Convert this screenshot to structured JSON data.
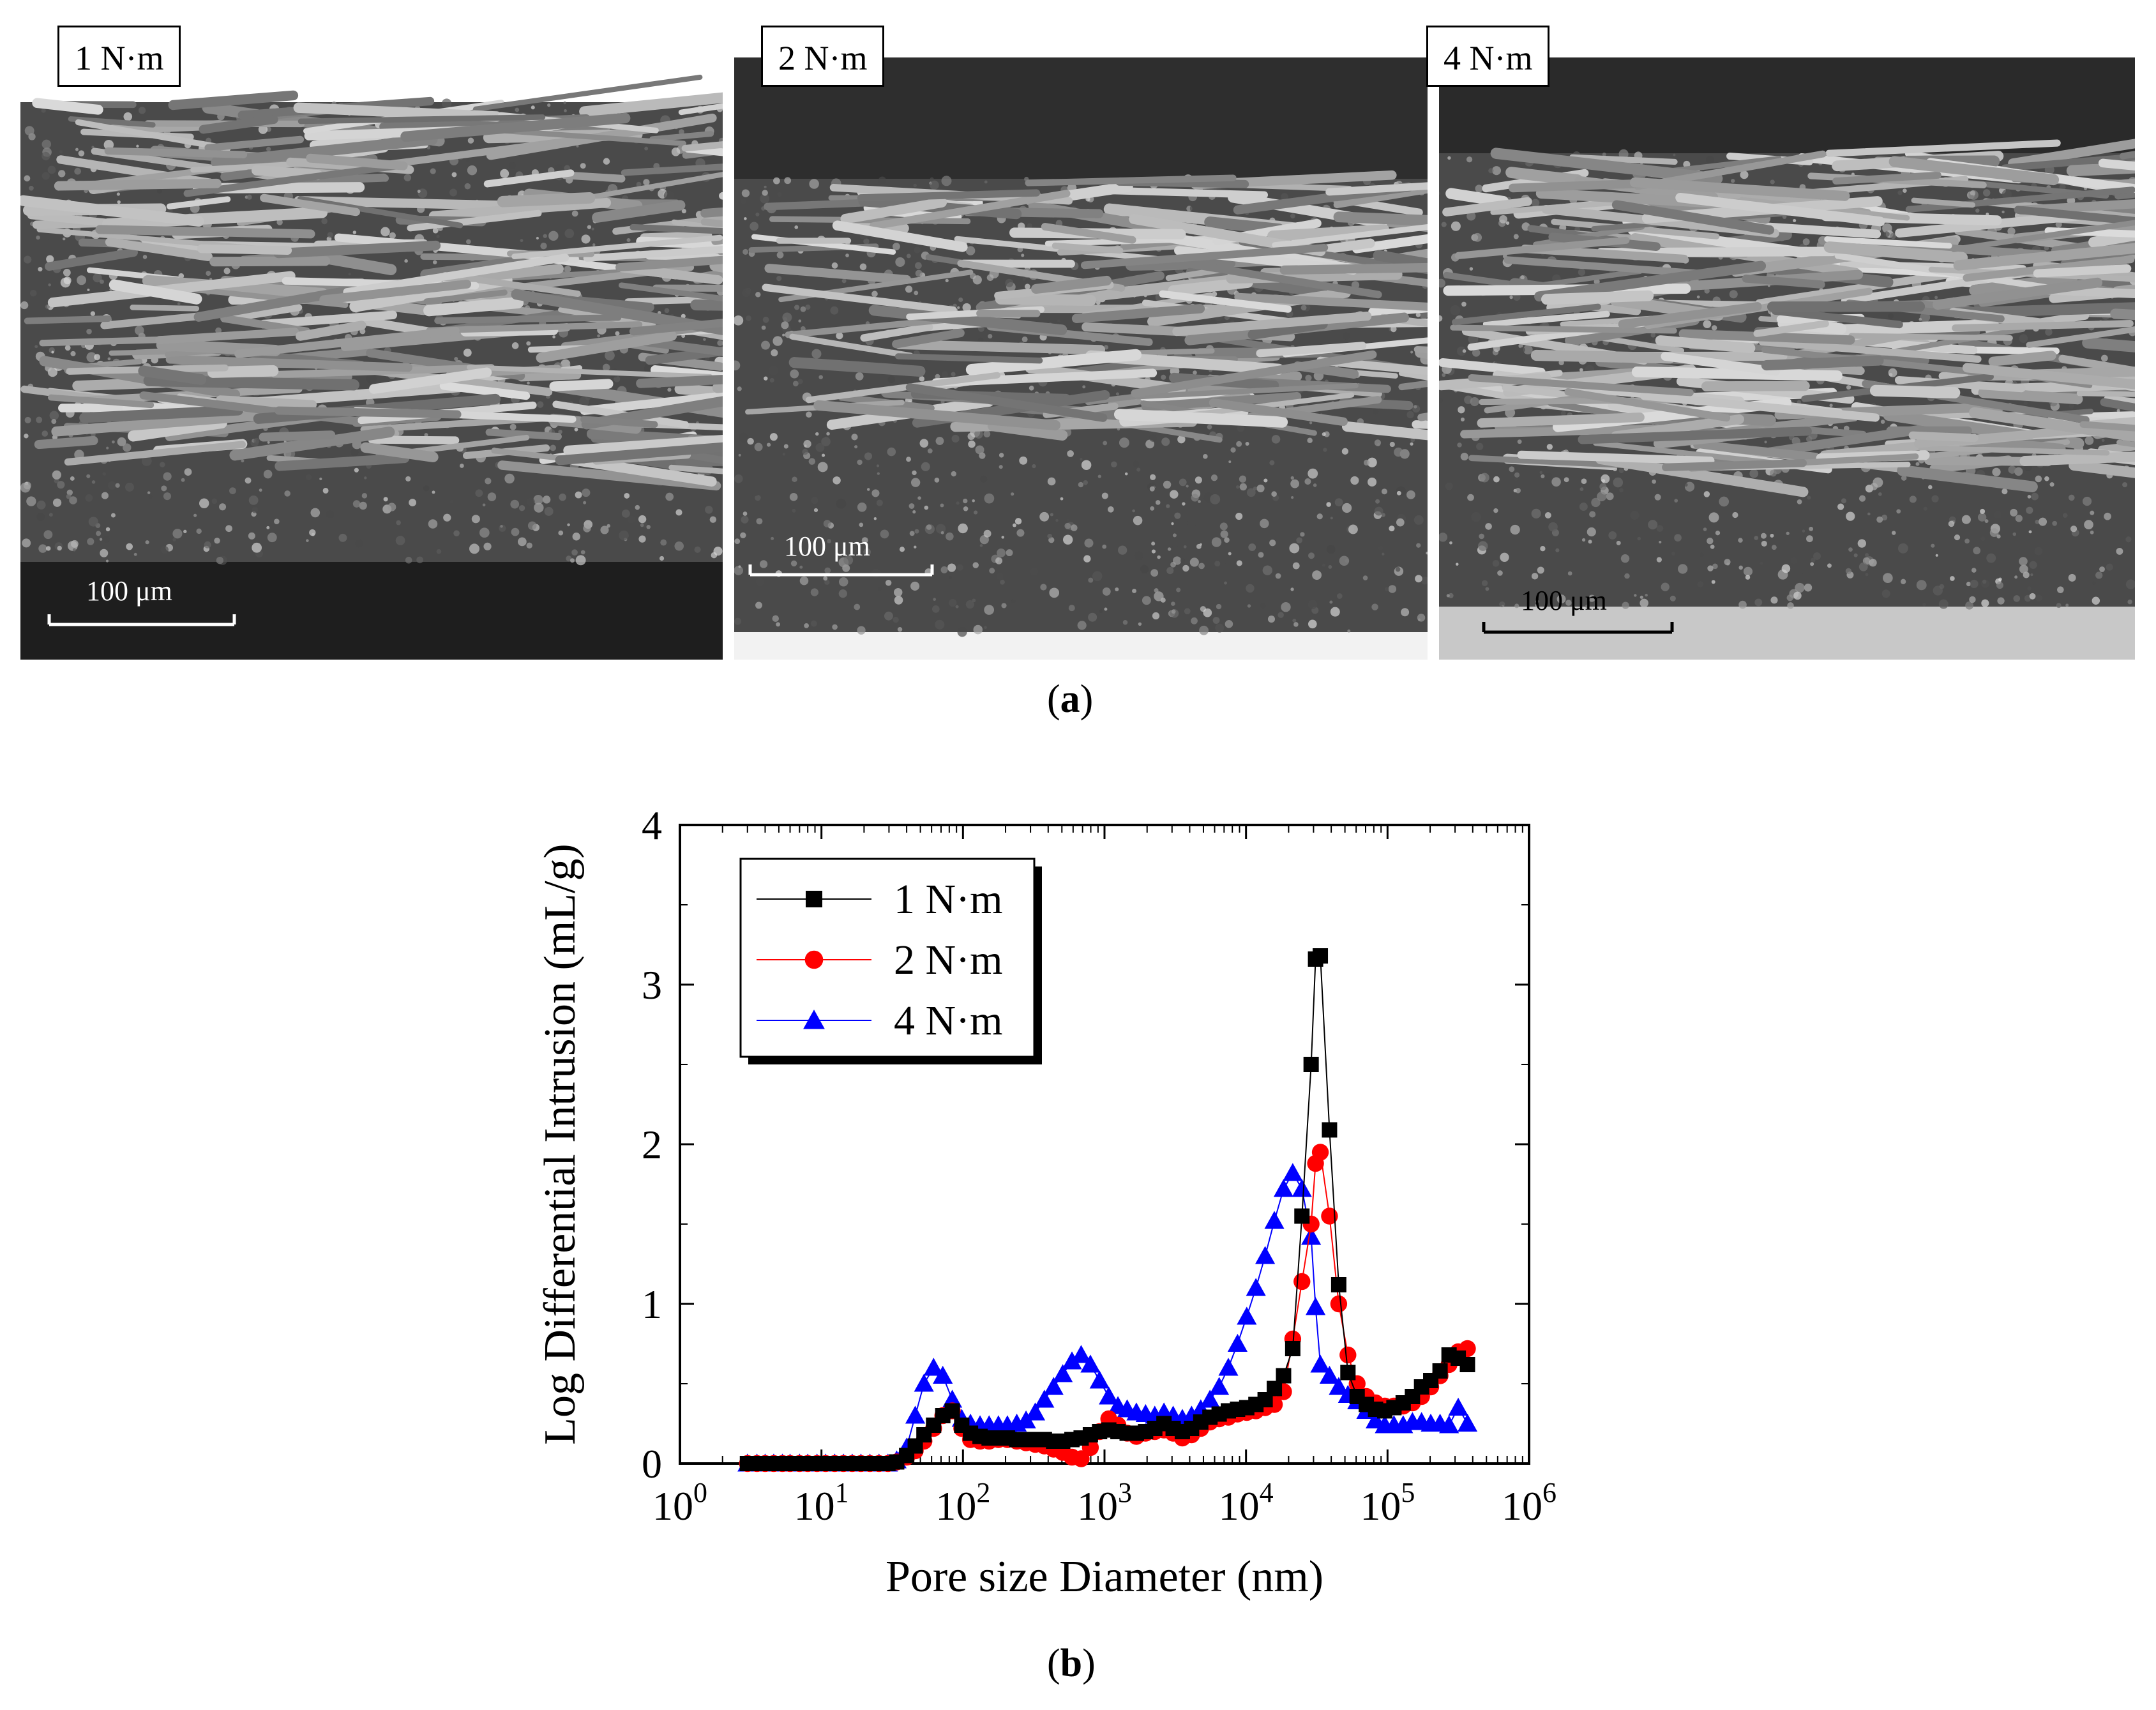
{
  "panel_a": {
    "caption_open": "(",
    "caption_letter": "a",
    "caption_close": ")",
    "images": [
      {
        "label": "1 N·m",
        "scale_bar": "100 μm"
      },
      {
        "label": "2 N·m",
        "scale_bar": "100 μm"
      },
      {
        "label": "4 N·m",
        "scale_bar": "100 μm"
      }
    ]
  },
  "panel_b": {
    "caption_open": "(",
    "caption_letter": "b",
    "caption_close": ")"
  },
  "chart_data": {
    "type": "scatter",
    "title": "",
    "xlabel": "Pore size Diameter (nm)",
    "ylabel": "Log Differential Intrusion (mL/g)",
    "x_scale": "log",
    "xlim": [
      1,
      1000000
    ],
    "ylim": [
      0,
      4
    ],
    "x_ticks": [
      {
        "base": "10",
        "exp": "0"
      },
      {
        "base": "10",
        "exp": "1"
      },
      {
        "base": "10",
        "exp": "2"
      },
      {
        "base": "10",
        "exp": "3"
      },
      {
        "base": "10",
        "exp": "4"
      },
      {
        "base": "10",
        "exp": "5"
      },
      {
        "base": "10",
        "exp": "6"
      }
    ],
    "y_ticks": [
      "0",
      "1",
      "2",
      "3",
      "4"
    ],
    "legend_position": "top-left",
    "grid": false,
    "series": [
      {
        "name": "1 N·m",
        "color": "#000000",
        "marker": "square",
        "x": [
          3,
          3.5,
          4,
          4.6,
          5.3,
          6,
          7,
          8,
          9.3,
          10.7,
          12.4,
          14.3,
          16.5,
          19,
          22,
          25.5,
          29.5,
          34,
          40,
          46,
          53,
          62,
          72,
          84,
          98,
          113,
          132,
          153,
          178,
          206,
          240,
          279,
          324,
          376,
          437,
          507,
          589,
          684,
          795,
          923,
          1072,
          1245,
          1446,
          1680,
          1951,
          2266,
          2632,
          3056,
          3550,
          4123,
          4789,
          5562,
          6460,
          7503,
          8714,
          10120,
          11750,
          13650,
          15860,
          18420,
          21390,
          24840,
          28850,
          31000,
          33500,
          38900,
          45200,
          52500,
          61000,
          70800,
          82300,
          95600,
          111000,
          129000,
          150000,
          174000,
          202000,
          235000,
          272000,
          316000,
          367000
        ],
        "y": [
          0,
          0,
          0,
          0,
          0,
          0,
          0,
          0,
          0,
          0,
          0,
          0,
          0,
          0,
          0,
          0,
          0,
          0.01,
          0.05,
          0.11,
          0.18,
          0.24,
          0.3,
          0.33,
          0.24,
          0.19,
          0.17,
          0.16,
          0.16,
          0.16,
          0.15,
          0.15,
          0.15,
          0.15,
          0.14,
          0.14,
          0.15,
          0.16,
          0.18,
          0.2,
          0.21,
          0.2,
          0.19,
          0.19,
          0.2,
          0.22,
          0.25,
          0.22,
          0.2,
          0.22,
          0.26,
          0.29,
          0.31,
          0.33,
          0.34,
          0.35,
          0.37,
          0.4,
          0.47,
          0.55,
          0.72,
          1.55,
          2.5,
          3.16,
          3.18,
          2.09,
          1.12,
          0.57,
          0.42,
          0.37,
          0.34,
          0.33,
          0.35,
          0.38,
          0.42,
          0.48,
          0.52,
          0.58,
          0.68,
          0.66,
          0.62
        ]
      },
      {
        "name": "2 N·m",
        "color": "#ff0000",
        "marker": "circle",
        "x": [
          3,
          3.5,
          4,
          4.6,
          5.3,
          6,
          7,
          8,
          9.3,
          10.7,
          12.4,
          14.3,
          16.5,
          19,
          22,
          25.5,
          29.5,
          34,
          40,
          46,
          53,
          62,
          72,
          84,
          98,
          113,
          132,
          153,
          178,
          206,
          240,
          279,
          324,
          376,
          437,
          507,
          589,
          684,
          795,
          923,
          1072,
          1245,
          1446,
          1680,
          1951,
          2266,
          2632,
          3056,
          3550,
          4123,
          4789,
          5562,
          6460,
          7503,
          8714,
          10120,
          11750,
          13650,
          15860,
          18420,
          21390,
          24840,
          28850,
          31000,
          33500,
          38900,
          45200,
          52500,
          61000,
          70800,
          82300,
          95600,
          111000,
          129000,
          150000,
          174000,
          202000,
          235000,
          272000,
          316000,
          367000
        ],
        "y": [
          0,
          0,
          0,
          0,
          0,
          0,
          0,
          0,
          0,
          0,
          0,
          0,
          0,
          0,
          0,
          0,
          0,
          0.01,
          0.04,
          0.08,
          0.14,
          0.22,
          0.3,
          0.33,
          0.22,
          0.15,
          0.14,
          0.14,
          0.15,
          0.15,
          0.14,
          0.13,
          0.12,
          0.11,
          0.09,
          0.07,
          0.04,
          0.03,
          0.1,
          0.2,
          0.28,
          0.24,
          0.19,
          0.17,
          0.19,
          0.2,
          0.21,
          0.19,
          0.16,
          0.18,
          0.22,
          0.26,
          0.28,
          0.29,
          0.31,
          0.32,
          0.33,
          0.35,
          0.37,
          0.45,
          0.78,
          1.14,
          1.5,
          1.88,
          1.95,
          1.55,
          1.0,
          0.68,
          0.5,
          0.42,
          0.38,
          0.36,
          0.36,
          0.36,
          0.38,
          0.42,
          0.48,
          0.55,
          0.62,
          0.7,
          0.72
        ]
      },
      {
        "name": "4 N·m",
        "color": "#0000ff",
        "marker": "triangle",
        "x": [
          3,
          3.5,
          4,
          4.6,
          5.3,
          6,
          7,
          8,
          9.3,
          10.7,
          12.4,
          14.3,
          16.5,
          19,
          22,
          25.5,
          29.5,
          34,
          40,
          46,
          53,
          62,
          72,
          84,
          98,
          113,
          132,
          153,
          178,
          206,
          240,
          279,
          324,
          376,
          437,
          507,
          589,
          684,
          795,
          923,
          1072,
          1245,
          1446,
          1680,
          1951,
          2266,
          2632,
          3056,
          3550,
          4123,
          4789,
          5562,
          6460,
          7503,
          8714,
          10120,
          11750,
          13650,
          15860,
          18420,
          21390,
          24840,
          28850,
          31000,
          33500,
          38900,
          45200,
          52500,
          61000,
          70800,
          82300,
          95600,
          111000,
          129000,
          150000,
          174000,
          202000,
          235000,
          272000,
          316000,
          367000
        ],
        "y": [
          0,
          0,
          0,
          0,
          0,
          0,
          0,
          0,
          0,
          0,
          0,
          0,
          0,
          0,
          0,
          0,
          0,
          0.02,
          0.1,
          0.3,
          0.5,
          0.6,
          0.55,
          0.4,
          0.28,
          0.25,
          0.24,
          0.24,
          0.24,
          0.24,
          0.25,
          0.27,
          0.32,
          0.4,
          0.48,
          0.56,
          0.64,
          0.68,
          0.62,
          0.52,
          0.42,
          0.36,
          0.34,
          0.32,
          0.31,
          0.3,
          0.32,
          0.3,
          0.28,
          0.3,
          0.34,
          0.4,
          0.48,
          0.6,
          0.75,
          0.92,
          1.1,
          1.3,
          1.52,
          1.72,
          1.82,
          1.72,
          1.42,
          0.98,
          0.62,
          0.55,
          0.48,
          0.43,
          0.39,
          0.33,
          0.27,
          0.24,
          0.24,
          0.24,
          0.26,
          0.26,
          0.25,
          0.25,
          0.24,
          0.35,
          0.25
        ]
      }
    ]
  }
}
